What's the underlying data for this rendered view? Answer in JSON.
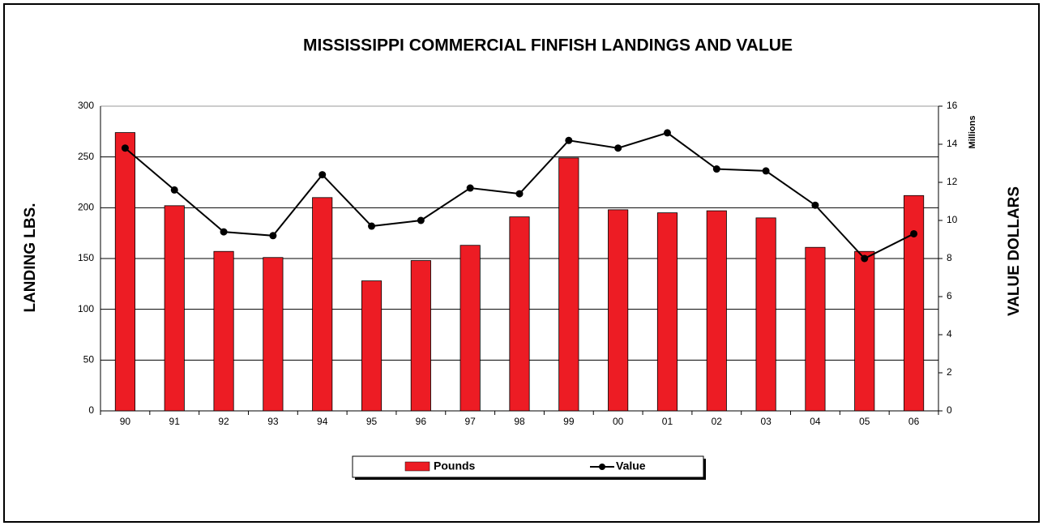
{
  "chart_data": {
    "type": "bar_line",
    "title": "MISSISSIPPI COMMERCIAL FINFISH LANDINGS AND VALUE",
    "ylabel": "LANDING LBS.",
    "y2label": "VALUE DOLLARS",
    "y2_unit_label": "Millions",
    "categories": [
      "90",
      "91",
      "92",
      "93",
      "94",
      "95",
      "96",
      "97",
      "98",
      "99",
      "00",
      "01",
      "02",
      "03",
      "04",
      "05",
      "06"
    ],
    "series": [
      {
        "name": "Pounds",
        "type": "bar",
        "color": "#ed1c24",
        "values": [
          274,
          202,
          157,
          151,
          210,
          128,
          148,
          163,
          191,
          249,
          198,
          195,
          197,
          190,
          161,
          157,
          212
        ]
      },
      {
        "name": "Value",
        "type": "line",
        "axis": "y2",
        "color": "#000000",
        "values": [
          13.8,
          11.6,
          9.4,
          9.2,
          12.4,
          9.7,
          10.0,
          11.7,
          11.4,
          14.2,
          13.8,
          14.6,
          12.7,
          12.6,
          10.8,
          8.0,
          9.3
        ]
      }
    ],
    "ylim": [
      0,
      300
    ],
    "yticks": [
      0,
      50,
      100,
      150,
      200,
      250,
      300
    ],
    "y2lim": [
      0,
      16
    ],
    "y2ticks": [
      0,
      2,
      4,
      6,
      8,
      10,
      12,
      14,
      16
    ],
    "grid": true,
    "legend": "bottom"
  }
}
